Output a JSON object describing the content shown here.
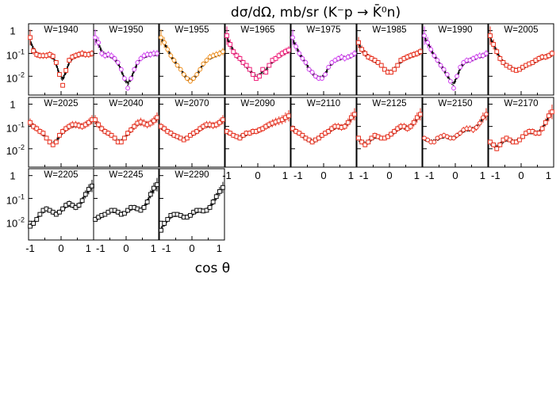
{
  "title": "dσ/dΩ, mb/sr (K⁻p → K̄⁰n)",
  "x_axis_title": "cos θ",
  "chart_data": {
    "type": "scatter",
    "title": "dσ/dΩ, mb/sr (K⁻p → K̄⁰n)",
    "xlabel": "cos θ",
    "ylabel": "",
    "x_tick_labels": [
      "-1",
      "0",
      "1"
    ],
    "y_tick_labels": [
      "1",
      "10⁻¹",
      "10⁻²"
    ],
    "xlim": [
      -1,
      1
    ],
    "ylim": [
      0.0015,
      2
    ],
    "y_scale": "log",
    "grid": false,
    "legend": "none",
    "curves": [
      "model (solid)",
      "model variant (dashed)",
      "model variant (dotted)"
    ],
    "panels": [
      {
        "label": "W=1940",
        "color": "#e8301e",
        "marker": "square",
        "x": [
          -0.95,
          -0.85,
          -0.75,
          -0.65,
          -0.55,
          -0.45,
          -0.35,
          -0.25,
          -0.15,
          -0.05,
          0.05,
          0.15,
          0.25,
          0.35,
          0.45,
          0.55,
          0.65,
          0.75,
          0.85,
          0.95
        ],
        "y": [
          0.5,
          0.13,
          0.09,
          0.08,
          0.08,
          0.08,
          0.09,
          0.075,
          0.04,
          0.012,
          0.004,
          0.018,
          0.05,
          0.07,
          0.08,
          0.09,
          0.1,
          0.09,
          0.09,
          0.1
        ]
      },
      {
        "label": "W=1950",
        "color": "#d040f0",
        "marker": "circle",
        "x": [
          -0.95,
          -0.85,
          -0.75,
          -0.65,
          -0.55,
          -0.45,
          -0.35,
          -0.25,
          -0.15,
          -0.05,
          0.05,
          0.15,
          0.25,
          0.35,
          0.45,
          0.55,
          0.65,
          0.75,
          0.85,
          0.95
        ],
        "y": [
          0.5,
          0.3,
          0.1,
          0.08,
          0.09,
          0.08,
          0.06,
          0.04,
          0.02,
          0.008,
          0.003,
          0.008,
          0.02,
          0.04,
          0.06,
          0.08,
          0.09,
          0.09,
          0.1,
          0.1
        ]
      },
      {
        "label": "W=1955",
        "color": "#f0901e",
        "marker": "circle",
        "x": [
          -0.95,
          -0.85,
          -0.75,
          -0.65,
          -0.55,
          -0.45,
          -0.35,
          -0.25,
          -0.15,
          -0.05,
          0.05,
          0.15,
          0.25,
          0.35,
          0.45,
          0.55,
          0.65,
          0.75,
          0.85,
          0.95
        ],
        "y": [
          0.5,
          0.3,
          0.15,
          0.08,
          0.05,
          0.03,
          0.02,
          0.012,
          0.008,
          0.006,
          0.008,
          0.012,
          0.02,
          0.035,
          0.05,
          0.07,
          0.08,
          0.09,
          0.1,
          0.12
        ]
      },
      {
        "label": "W=1965",
        "color": "#f0207a",
        "marker": "square",
        "x": [
          -0.95,
          -0.85,
          -0.75,
          -0.65,
          -0.55,
          -0.45,
          -0.35,
          -0.25,
          -0.15,
          -0.05,
          0.05,
          0.15,
          0.25,
          0.35,
          0.45,
          0.55,
          0.65,
          0.75,
          0.85,
          0.95
        ],
        "y": [
          0.6,
          0.25,
          0.12,
          0.08,
          0.06,
          0.04,
          0.03,
          0.02,
          0.012,
          0.008,
          0.01,
          0.02,
          0.015,
          0.03,
          0.05,
          0.06,
          0.08,
          0.1,
          0.12,
          0.14
        ]
      },
      {
        "label": "W=1975",
        "color": "#d040f0",
        "marker": "circle",
        "x": [
          -0.95,
          -0.85,
          -0.75,
          -0.65,
          -0.55,
          -0.45,
          -0.35,
          -0.25,
          -0.15,
          -0.05,
          0.05,
          0.15,
          0.25,
          0.35,
          0.45,
          0.55,
          0.65,
          0.75,
          0.85,
          0.95
        ],
        "y": [
          0.5,
          0.2,
          0.1,
          0.06,
          0.04,
          0.02,
          0.015,
          0.01,
          0.008,
          0.008,
          0.012,
          0.025,
          0.04,
          0.05,
          0.06,
          0.07,
          0.06,
          0.07,
          0.08,
          0.1
        ]
      },
      {
        "label": "W=1985",
        "color": "#e8301e",
        "marker": "square",
        "x": [
          -0.95,
          -0.85,
          -0.75,
          -0.65,
          -0.55,
          -0.45,
          -0.35,
          -0.25,
          -0.15,
          -0.05,
          0.05,
          0.15,
          0.25,
          0.35,
          0.45,
          0.55,
          0.65,
          0.75,
          0.85,
          0.95
        ],
        "y": [
          0.3,
          0.15,
          0.1,
          0.07,
          0.06,
          0.05,
          0.04,
          0.03,
          0.02,
          0.015,
          0.015,
          0.02,
          0.03,
          0.05,
          0.06,
          0.07,
          0.08,
          0.09,
          0.1,
          0.12
        ]
      },
      {
        "label": "W=1990",
        "color": "#d040f0",
        "marker": "circle",
        "x": [
          -0.95,
          -0.85,
          -0.75,
          -0.65,
          -0.55,
          -0.45,
          -0.35,
          -0.25,
          -0.15,
          -0.05,
          0.05,
          0.15,
          0.25,
          0.35,
          0.45,
          0.55,
          0.65,
          0.75,
          0.85,
          0.95
        ],
        "y": [
          0.6,
          0.3,
          0.15,
          0.08,
          0.05,
          0.03,
          0.02,
          0.012,
          0.006,
          0.003,
          0.01,
          0.025,
          0.04,
          0.05,
          0.05,
          0.06,
          0.07,
          0.08,
          0.08,
          0.1
        ]
      },
      {
        "label": "W=2005",
        "color": "#e8301e",
        "marker": "square",
        "x": [
          -0.95,
          -0.85,
          -0.75,
          -0.65,
          -0.55,
          -0.45,
          -0.35,
          -0.25,
          -0.15,
          -0.05,
          0.05,
          0.15,
          0.25,
          0.35,
          0.45,
          0.55,
          0.65,
          0.75,
          0.85,
          0.95
        ],
        "y": [
          0.6,
          0.25,
          0.12,
          0.06,
          0.04,
          0.03,
          0.025,
          0.02,
          0.018,
          0.02,
          0.025,
          0.03,
          0.035,
          0.04,
          0.05,
          0.06,
          0.07,
          0.07,
          0.08,
          0.1
        ]
      },
      {
        "label": "W=2025",
        "color": "#e8301e",
        "marker": "square",
        "x": [
          -0.95,
          -0.85,
          -0.75,
          -0.65,
          -0.55,
          -0.45,
          -0.35,
          -0.25,
          -0.15,
          -0.05,
          0.05,
          0.15,
          0.25,
          0.35,
          0.45,
          0.55,
          0.65,
          0.75,
          0.85,
          0.95
        ],
        "y": [
          0.15,
          0.1,
          0.08,
          0.06,
          0.05,
          0.03,
          0.02,
          0.015,
          0.02,
          0.04,
          0.06,
          0.08,
          0.1,
          0.12,
          0.12,
          0.11,
          0.1,
          0.12,
          0.15,
          0.2
        ]
      },
      {
        "label": "W=2040",
        "color": "#e8301e",
        "marker": "square",
        "x": [
          -0.95,
          -0.85,
          -0.75,
          -0.65,
          -0.55,
          -0.45,
          -0.35,
          -0.25,
          -0.15,
          -0.05,
          0.05,
          0.15,
          0.25,
          0.35,
          0.45,
          0.55,
          0.65,
          0.75,
          0.85,
          0.95
        ],
        "y": [
          0.2,
          0.12,
          0.08,
          0.06,
          0.05,
          0.04,
          0.03,
          0.02,
          0.02,
          0.03,
          0.05,
          0.07,
          0.1,
          0.14,
          0.16,
          0.14,
          0.12,
          0.14,
          0.18,
          0.25
        ]
      },
      {
        "label": "W=2070",
        "color": "#e8301e",
        "marker": "square",
        "x": [
          -0.95,
          -0.85,
          -0.75,
          -0.65,
          -0.55,
          -0.45,
          -0.35,
          -0.25,
          -0.15,
          -0.05,
          0.05,
          0.15,
          0.25,
          0.35,
          0.45,
          0.55,
          0.65,
          0.75,
          0.85,
          0.95
        ],
        "y": [
          0.1,
          0.08,
          0.06,
          0.05,
          0.04,
          0.035,
          0.03,
          0.025,
          0.03,
          0.04,
          0.05,
          0.06,
          0.08,
          0.1,
          0.12,
          0.12,
          0.11,
          0.12,
          0.15,
          0.2
        ]
      },
      {
        "label": "W=2090",
        "color": "#e8301e",
        "marker": "square",
        "x": [
          -0.95,
          -0.85,
          -0.75,
          -0.65,
          -0.55,
          -0.45,
          -0.35,
          -0.25,
          -0.15,
          -0.05,
          0.05,
          0.15,
          0.25,
          0.35,
          0.45,
          0.55,
          0.65,
          0.75,
          0.85,
          0.95
        ],
        "y": [
          0.06,
          0.05,
          0.04,
          0.035,
          0.03,
          0.04,
          0.05,
          0.05,
          0.06,
          0.06,
          0.07,
          0.08,
          0.1,
          0.12,
          0.14,
          0.16,
          0.18,
          0.2,
          0.25,
          0.3
        ]
      },
      {
        "label": "W=2110",
        "color": "#e8301e",
        "marker": "square",
        "x": [
          -0.95,
          -0.85,
          -0.75,
          -0.65,
          -0.55,
          -0.45,
          -0.35,
          -0.25,
          -0.15,
          -0.05,
          0.05,
          0.15,
          0.25,
          0.35,
          0.45,
          0.55,
          0.65,
          0.75,
          0.85,
          0.95
        ],
        "y": [
          0.08,
          0.06,
          0.05,
          0.04,
          0.03,
          0.025,
          0.02,
          0.025,
          0.03,
          0.04,
          0.05,
          0.06,
          0.08,
          0.1,
          0.1,
          0.09,
          0.1,
          0.15,
          0.25,
          0.35
        ]
      },
      {
        "label": "W=2125",
        "color": "#e8301e",
        "marker": "square",
        "x": [
          -0.95,
          -0.85,
          -0.75,
          -0.65,
          -0.55,
          -0.45,
          -0.35,
          -0.25,
          -0.15,
          -0.05,
          0.05,
          0.15,
          0.25,
          0.35,
          0.45,
          0.55,
          0.65,
          0.75,
          0.85,
          0.95
        ],
        "y": [
          0.03,
          0.02,
          0.015,
          0.02,
          0.03,
          0.04,
          0.035,
          0.03,
          0.03,
          0.035,
          0.045,
          0.06,
          0.08,
          0.1,
          0.1,
          0.08,
          0.1,
          0.15,
          0.25,
          0.35
        ]
      },
      {
        "label": "W=2150",
        "color": "#e8301e",
        "marker": "circle",
        "x": [
          -0.95,
          -0.85,
          -0.75,
          -0.65,
          -0.55,
          -0.45,
          -0.35,
          -0.25,
          -0.15,
          -0.05,
          0.05,
          0.15,
          0.25,
          0.35,
          0.45,
          0.55,
          0.65,
          0.75,
          0.85,
          0.95
        ],
        "y": [
          0.03,
          0.025,
          0.02,
          0.02,
          0.03,
          0.035,
          0.04,
          0.035,
          0.03,
          0.03,
          0.04,
          0.05,
          0.07,
          0.08,
          0.08,
          0.07,
          0.09,
          0.14,
          0.25,
          0.35
        ]
      },
      {
        "label": "W=2170",
        "color": "#e8301e",
        "marker": "square",
        "x": [
          -0.95,
          -0.85,
          -0.75,
          -0.65,
          -0.55,
          -0.45,
          -0.35,
          -0.25,
          -0.15,
          -0.05,
          0.05,
          0.15,
          0.25,
          0.35,
          0.45,
          0.55,
          0.65,
          0.75,
          0.85,
          0.95
        ],
        "y": [
          0.02,
          0.015,
          0.01,
          0.015,
          0.025,
          0.03,
          0.025,
          0.02,
          0.02,
          0.025,
          0.035,
          0.05,
          0.06,
          0.06,
          0.05,
          0.05,
          0.08,
          0.15,
          0.3,
          0.45
        ]
      },
      {
        "label": "W=2205",
        "color": "#111111",
        "marker": "square",
        "x": [
          -0.95,
          -0.85,
          -0.75,
          -0.65,
          -0.55,
          -0.45,
          -0.35,
          -0.25,
          -0.15,
          -0.05,
          0.05,
          0.15,
          0.25,
          0.35,
          0.45,
          0.55,
          0.65,
          0.75,
          0.85,
          0.95
        ],
        "y": [
          0.006,
          0.008,
          0.012,
          0.02,
          0.03,
          0.035,
          0.03,
          0.025,
          0.02,
          0.025,
          0.035,
          0.05,
          0.06,
          0.05,
          0.04,
          0.05,
          0.08,
          0.15,
          0.25,
          0.35
        ]
      },
      {
        "label": "W=2245",
        "color": "#111111",
        "marker": "square",
        "x": [
          -0.95,
          -0.85,
          -0.75,
          -0.65,
          -0.55,
          -0.45,
          -0.35,
          -0.25,
          -0.15,
          -0.05,
          0.05,
          0.15,
          0.25,
          0.35,
          0.45,
          0.55,
          0.65,
          0.75,
          0.85,
          0.95
        ],
        "y": [
          0.012,
          0.015,
          0.018,
          0.02,
          0.025,
          0.03,
          0.03,
          0.025,
          0.02,
          0.022,
          0.03,
          0.04,
          0.04,
          0.035,
          0.03,
          0.04,
          0.07,
          0.15,
          0.28,
          0.4
        ]
      },
      {
        "label": "W=2290",
        "color": "#111111",
        "marker": "square",
        "x": [
          -0.95,
          -0.85,
          -0.75,
          -0.65,
          -0.55,
          -0.45,
          -0.35,
          -0.25,
          -0.15,
          -0.05,
          0.05,
          0.15,
          0.25,
          0.35,
          0.45,
          0.55,
          0.65,
          0.75,
          0.85,
          0.95
        ],
        "y": [
          0.004,
          0.008,
          0.012,
          0.018,
          0.02,
          0.02,
          0.018,
          0.015,
          0.015,
          0.018,
          0.025,
          0.03,
          0.03,
          0.028,
          0.03,
          0.04,
          0.07,
          0.12,
          0.2,
          0.3
        ]
      }
    ]
  }
}
